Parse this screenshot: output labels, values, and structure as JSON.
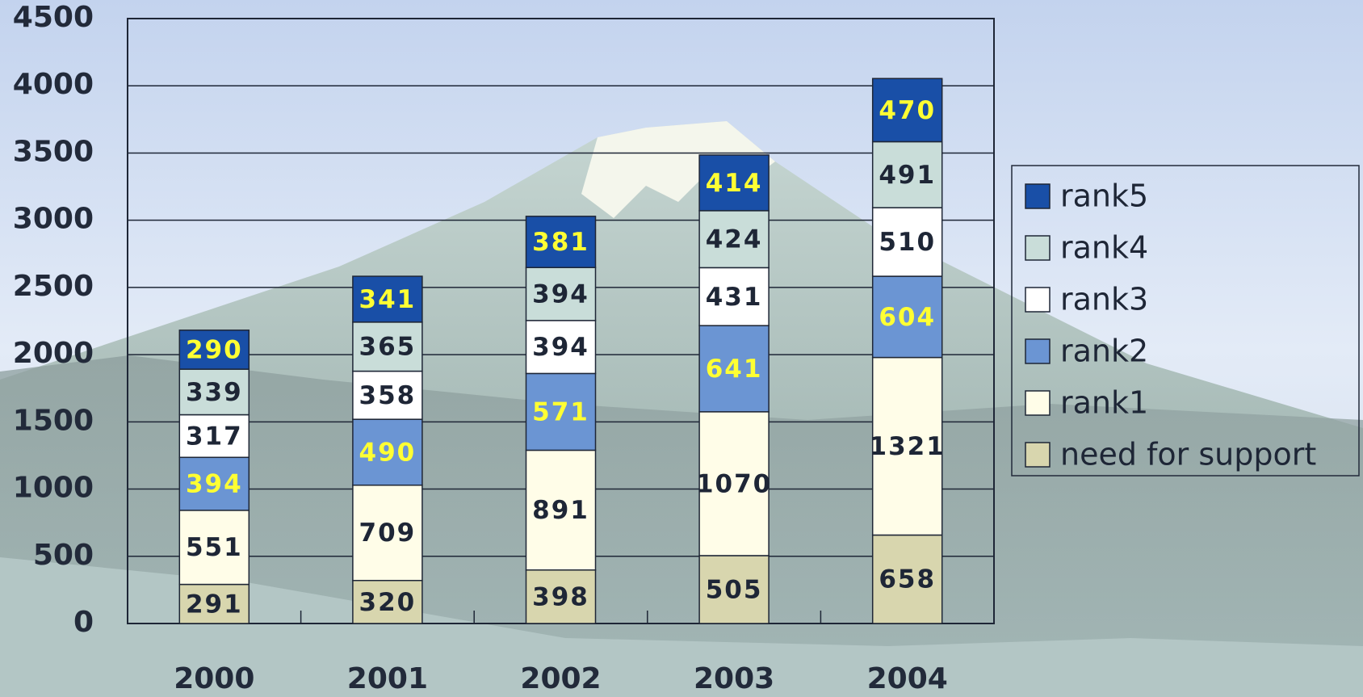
{
  "chart_data": {
    "type": "stacked-bar",
    "categories": [
      "2000",
      "2001",
      "2002",
      "2003",
      "2004"
    ],
    "series": [
      {
        "name": "need for support",
        "color": "#d8d6ae",
        "label_color": "#1e2636",
        "values": [
          291,
          320,
          398,
          505,
          658
        ]
      },
      {
        "name": "rank1",
        "color": "#fffde8",
        "label_color": "#1e2636",
        "values": [
          551,
          709,
          891,
          1070,
          1321
        ]
      },
      {
        "name": "rank2",
        "color": "#6b95d3",
        "label_color": "#ffff33",
        "values": [
          394,
          490,
          571,
          641,
          604
        ]
      },
      {
        "name": "rank3",
        "color": "#ffffff",
        "label_color": "#1e2636",
        "values": [
          317,
          358,
          394,
          431,
          510
        ]
      },
      {
        "name": "rank4",
        "color": "#c9ddd9",
        "label_color": "#1e2636",
        "values": [
          339,
          365,
          394,
          424,
          491
        ]
      },
      {
        "name": "rank5",
        "color": "#194fa7",
        "label_color": "#ffff33",
        "values": [
          290,
          341,
          381,
          414,
          470
        ]
      }
    ],
    "ylim": [
      0,
      4500
    ],
    "yticks": [
      0,
      500,
      1000,
      1500,
      2000,
      2500,
      3000,
      3500,
      4000,
      4500
    ],
    "grid": true,
    "legend": "right"
  }
}
